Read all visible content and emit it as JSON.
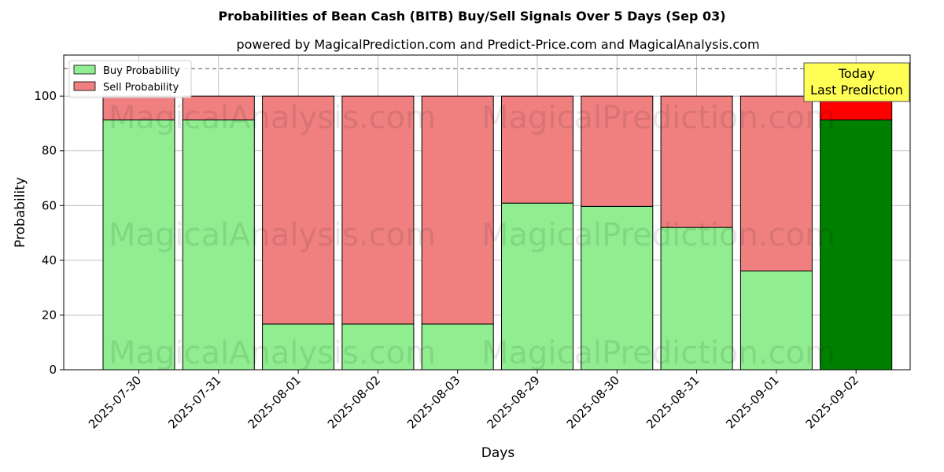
{
  "chart_data": {
    "type": "bar",
    "stacked": true,
    "title": "Probabilities of Bean Cash (BITB) Buy/Sell Signals Over 5 Days (Sep 03)",
    "subtitle": "powered by MagicalPrediction.com and Predict-Price.com and MagicalAnalysis.com",
    "xlabel": "Days",
    "ylabel": "Probability",
    "ylim": [
      0,
      115
    ],
    "yticks": [
      0,
      20,
      40,
      60,
      80,
      100
    ],
    "reference_line": 110,
    "grid": true,
    "legend_position": "top-left",
    "categories": [
      "2025-07-30",
      "2025-07-31",
      "2025-08-01",
      "2025-08-02",
      "2025-08-03",
      "2025-08-29",
      "2025-08-30",
      "2025-08-31",
      "2025-09-01",
      "2025-09-02"
    ],
    "series": [
      {
        "name": "Buy Probability",
        "color": "#90ee90",
        "highlight_color": "#008000",
        "values": [
          91.3,
          91.3,
          16.7,
          16.7,
          16.7,
          60.9,
          59.7,
          52.0,
          36.1,
          91.3
        ]
      },
      {
        "name": "Sell Probability",
        "color": "#f08080",
        "highlight_color": "#ff0000",
        "values": [
          8.7,
          8.7,
          83.3,
          83.3,
          83.3,
          39.1,
          40.3,
          48.0,
          63.9,
          8.7
        ]
      }
    ],
    "highlight_index": 9,
    "annotation": {
      "line1": "Today",
      "line2": "Last Prediction",
      "bg_color": "#ffff55"
    },
    "watermarks": [
      "MagicalAnalysis.com",
      "MagicalPrediction.com"
    ]
  }
}
